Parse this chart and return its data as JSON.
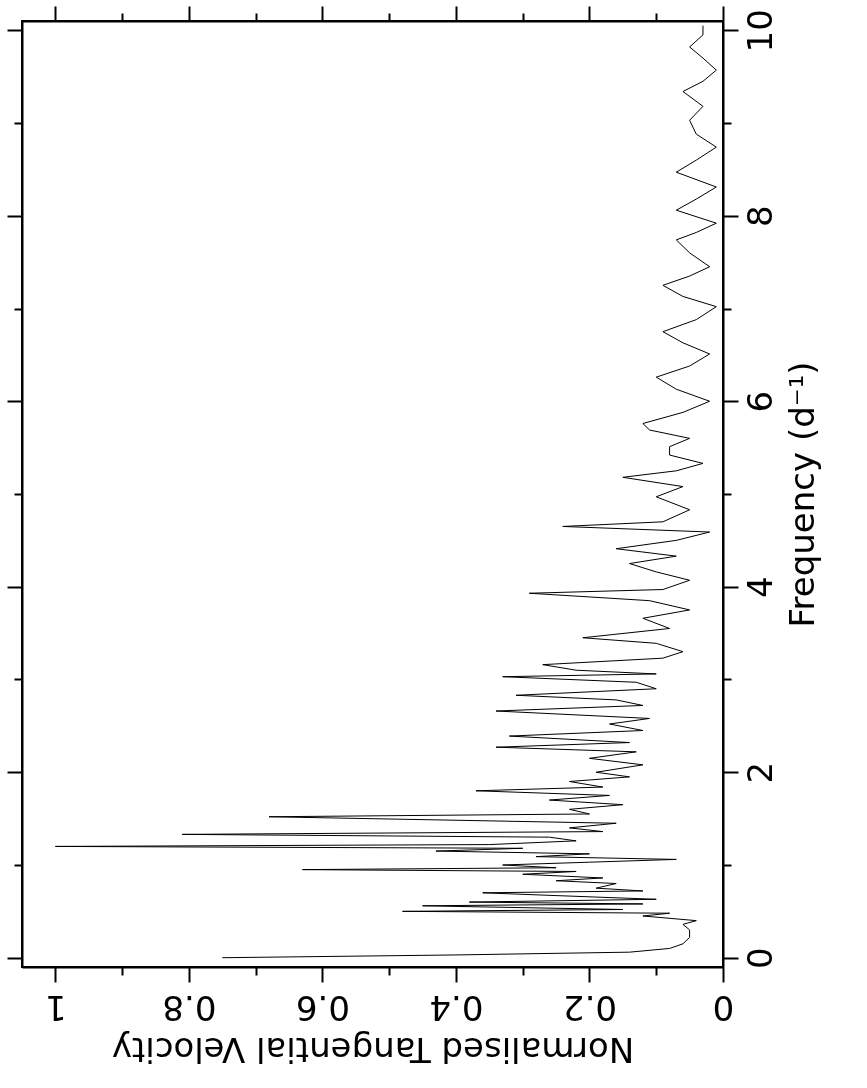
{
  "chart_data": {
    "type": "line",
    "orientation": "horizontal",
    "xlabel": "Normalised Tangential Velocity",
    "ylabel": "Frequency (d⁻¹)",
    "x": [
      0.0,
      0.03,
      0.06,
      0.1,
      0.15,
      0.22,
      0.3,
      0.36,
      0.4,
      0.45,
      0.48,
      0.5,
      0.52,
      0.56,
      0.58,
      0.6,
      0.63,
      0.67,
      0.7,
      0.72,
      0.75,
      0.8,
      0.83,
      0.86,
      0.9,
      0.93,
      0.95,
      0.97,
      1.0,
      1.03,
      1.06,
      1.09,
      1.12,
      1.15,
      1.18,
      1.2,
      1.22,
      1.26,
      1.3,
      1.33,
      1.36,
      1.4,
      1.45,
      1.52,
      1.55,
      1.6,
      1.65,
      1.7,
      1.75,
      1.8,
      1.84,
      1.9,
      1.95,
      2.0,
      2.08,
      2.15,
      2.22,
      2.27,
      2.32,
      2.39,
      2.45,
      2.52,
      2.58,
      2.66,
      2.72,
      2.78,
      2.83,
      2.9,
      2.97,
      3.03,
      3.06,
      3.1,
      3.16,
      3.23,
      3.3,
      3.39,
      3.45,
      3.55,
      3.66,
      3.75,
      3.85,
      3.93,
      3.97,
      4.07,
      4.16,
      4.25,
      4.33,
      4.41,
      4.5,
      4.59,
      4.65,
      4.7,
      4.83,
      4.97,
      5.08,
      5.18,
      5.25,
      5.33,
      5.42,
      5.51,
      5.6,
      5.69,
      5.76,
      5.88,
      6.0,
      6.13,
      6.26,
      6.38,
      6.51,
      6.63,
      6.75,
      6.88,
      7.02,
      7.13,
      7.25,
      7.35,
      7.45,
      7.6,
      7.74,
      7.82,
      7.92,
      8.06,
      8.18,
      8.31,
      8.47,
      8.6,
      8.74,
      8.88,
      9.03,
      9.18,
      9.34,
      9.45,
      9.57,
      9.7,
      9.82,
      9.95,
      10.05
    ],
    "values": [
      0.75,
      0.4,
      0.14,
      0.08,
      0.06,
      0.05,
      0.05,
      0.06,
      0.04,
      0.12,
      0.08,
      0.48,
      0.15,
      0.45,
      0.12,
      0.38,
      0.1,
      0.25,
      0.36,
      0.12,
      0.19,
      0.16,
      0.25,
      0.18,
      0.3,
      0.22,
      0.63,
      0.25,
      0.33,
      0.2,
      0.07,
      0.28,
      0.2,
      0.43,
      0.3,
      1.0,
      0.35,
      0.22,
      0.26,
      0.81,
      0.18,
      0.23,
      0.16,
      0.68,
      0.2,
      0.23,
      0.15,
      0.26,
      0.17,
      0.37,
      0.18,
      0.23,
      0.14,
      0.19,
      0.12,
      0.2,
      0.13,
      0.34,
      0.14,
      0.32,
      0.12,
      0.17,
      0.11,
      0.34,
      0.12,
      0.16,
      0.31,
      0.1,
      0.13,
      0.33,
      0.1,
      0.22,
      0.27,
      0.09,
      0.06,
      0.1,
      0.21,
      0.08,
      0.12,
      0.05,
      0.11,
      0.29,
      0.09,
      0.05,
      0.1,
      0.14,
      0.07,
      0.16,
      0.07,
      0.02,
      0.24,
      0.09,
      0.05,
      0.1,
      0.06,
      0.15,
      0.07,
      0.03,
      0.08,
      0.08,
      0.05,
      0.11,
      0.12,
      0.06,
      0.02,
      0.07,
      0.1,
      0.05,
      0.02,
      0.06,
      0.09,
      0.04,
      0.01,
      0.06,
      0.09,
      0.05,
      0.02,
      0.05,
      0.07,
      0.04,
      0.01,
      0.07,
      0.04,
      0.01,
      0.07,
      0.04,
      0.01,
      0.04,
      0.05,
      0.03,
      0.06,
      0.03,
      0.01,
      0.03,
      0.05,
      0.03,
      0.03
    ],
    "color": "#000000",
    "xlim": [
      1.05,
      0
    ],
    "xticks": [
      0,
      {
        "value": 0.1,
        "label": null
      },
      0.2,
      {
        "value": 0.3,
        "label": null
      },
      0.4,
      {
        "value": 0.5,
        "label": null
      },
      0.6,
      {
        "value": 0.7,
        "label": null
      },
      0.8,
      {
        "value": 0.9,
        "label": null
      },
      1
    ],
    "ylim": [
      -0.1,
      10.1
    ],
    "yticks": [
      0,
      {
        "value": 1,
        "label": null
      },
      2,
      {
        "value": 3,
        "label": null
      },
      4,
      {
        "value": 5,
        "label": null
      },
      6,
      {
        "value": 7,
        "label": null
      },
      8,
      {
        "value": 9,
        "label": null
      },
      10
    ],
    "line_style": "solid"
  }
}
